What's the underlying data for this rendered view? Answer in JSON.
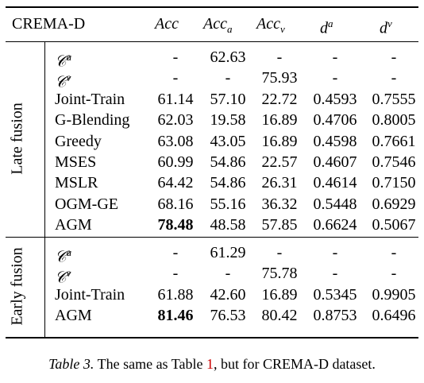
{
  "header": {
    "dataset": "CREMA-D",
    "columns": [
      "Acc",
      "Acc_a",
      "Acc_v",
      "d^a",
      "d^v"
    ]
  },
  "groups": [
    {
      "label": "Late fusion",
      "rows": [
        {
          "method": "C^a",
          "cells": [
            "-",
            "62.63",
            "-",
            "-",
            "-"
          ]
        },
        {
          "method": "C^v",
          "cells": [
            "-",
            "-",
            "75.93",
            "-",
            "-"
          ]
        },
        {
          "method": "Joint-Train",
          "cells": [
            "61.14",
            "57.10",
            "22.72",
            "0.4593",
            "0.7555"
          ]
        },
        {
          "method": "G-Blending",
          "cells": [
            "62.03",
            "19.58",
            "16.89",
            "0.4706",
            "0.8005"
          ]
        },
        {
          "method": "Greedy",
          "cells": [
            "63.08",
            "43.05",
            "16.89",
            "0.4598",
            "0.7661"
          ]
        },
        {
          "method": "MSES",
          "cells": [
            "60.99",
            "54.86",
            "22.57",
            "0.4607",
            "0.7546"
          ]
        },
        {
          "method": "MSLR",
          "cells": [
            "64.42",
            "54.86",
            "26.31",
            "0.4614",
            "0.7150"
          ]
        },
        {
          "method": "OGM-GE",
          "cells": [
            "68.16",
            "55.16",
            "36.32",
            "0.5448",
            "0.6929"
          ]
        },
        {
          "method": "AGM",
          "cells": [
            "78.48",
            "48.58",
            "57.85",
            "0.6624",
            "0.5067"
          ],
          "bold_first": true
        }
      ]
    },
    {
      "label": "Early fusion",
      "rows": [
        {
          "method": "C^a",
          "cells": [
            "-",
            "61.29",
            "-",
            "-",
            "-"
          ]
        },
        {
          "method": "C^v",
          "cells": [
            "-",
            "-",
            "75.78",
            "-",
            "-"
          ]
        },
        {
          "method": "Joint-Train",
          "cells": [
            "61.88",
            "42.60",
            "16.89",
            "0.5345",
            "0.9905"
          ]
        },
        {
          "method": "AGM",
          "cells": [
            "81.46",
            "76.53",
            "80.42",
            "0.8753",
            "0.6496"
          ],
          "bold_first": true
        }
      ]
    }
  ],
  "caption": {
    "label": "Table 3.",
    "text_before": " The same as Table ",
    "ref": "1",
    "text_after": ", but for CREMA-D dataset."
  }
}
